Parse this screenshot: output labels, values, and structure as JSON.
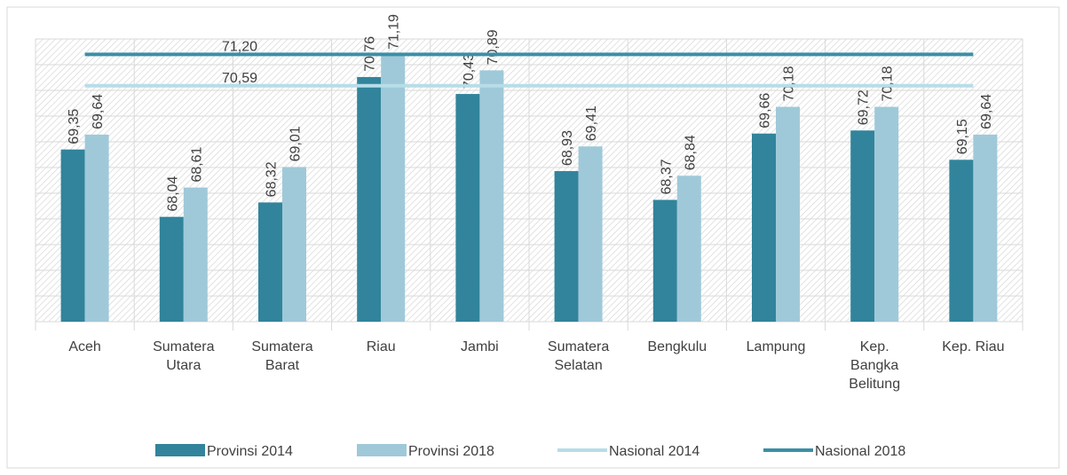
{
  "chart_data": {
    "type": "bar",
    "categories": [
      "Aceh",
      "Sumatera Utara",
      "Sumatera Barat",
      "Riau",
      "Jambi",
      "Sumatera Selatan",
      "Bengkulu",
      "Lampung",
      "Kep. Bangka Belitung",
      "Kep. Riau"
    ],
    "series": [
      {
        "name": "Provinsi 2014",
        "color": "#31849b",
        "values": [
          69.35,
          68.04,
          68.32,
          70.76,
          70.43,
          68.93,
          68.37,
          69.66,
          69.72,
          69.15
        ],
        "value_labels": [
          "69,35",
          "68,04",
          "68,32",
          "70,76",
          "70,43",
          "68,93",
          "68,37",
          "69,66",
          "69,72",
          "69,15"
        ]
      },
      {
        "name": "Provinsi 2018",
        "color": "#9fc9d9",
        "values": [
          69.64,
          68.61,
          69.01,
          71.19,
          70.89,
          69.41,
          68.84,
          70.18,
          70.18,
          69.64
        ],
        "value_labels": [
          "69,64",
          "68,61",
          "69,01",
          "71,19",
          "70,89",
          "69,41",
          "68,84",
          "70,18",
          "70,18",
          "69,64"
        ]
      }
    ],
    "reference_lines": [
      {
        "name": "Nasional 2014",
        "color": "#b7dde8",
        "value": 70.59,
        "value_label": "70,59"
      },
      {
        "name": "Nasional 2018",
        "color": "#3b8fa6",
        "value": 71.2,
        "value_label": "71,20"
      }
    ],
    "ylim": [
      66,
      71.5
    ],
    "yticks": [
      66,
      66.5,
      67,
      67.5,
      68,
      68.5,
      69,
      69.5,
      70,
      70.5,
      71,
      71.5
    ],
    "grid": true
  }
}
